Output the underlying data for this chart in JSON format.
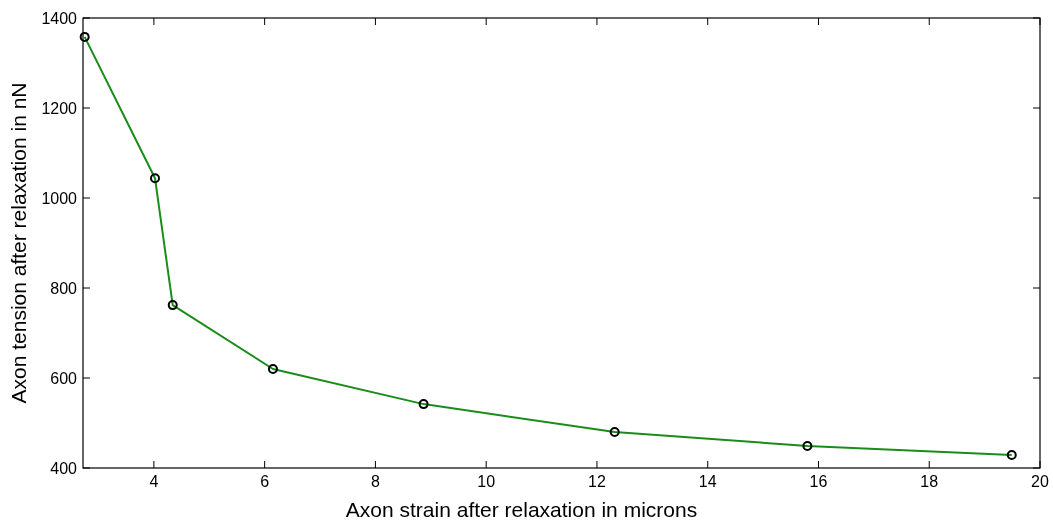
{
  "chart_data": {
    "type": "line",
    "xlabel": "Axon strain after relaxation in microns",
    "ylabel": "Axon tension after relaxation in nN",
    "x": [
      2.75,
      4.02,
      4.34,
      6.15,
      8.87,
      12.32,
      15.8,
      19.49
    ],
    "series": [
      {
        "color": "#1a8c1a",
        "values": [
          1358,
          1044,
          762,
          620,
          542,
          480,
          449,
          429
        ]
      }
    ],
    "xlim": [
      2.72,
      20
    ],
    "ylim": [
      400,
      1400
    ],
    "xticks": [
      4,
      6,
      8,
      10,
      12,
      14,
      16,
      18,
      20
    ],
    "yticks": [
      400,
      600,
      800,
      1000,
      1200,
      1400
    ],
    "marker": "circle",
    "line_style": "solid",
    "grid": false
  }
}
